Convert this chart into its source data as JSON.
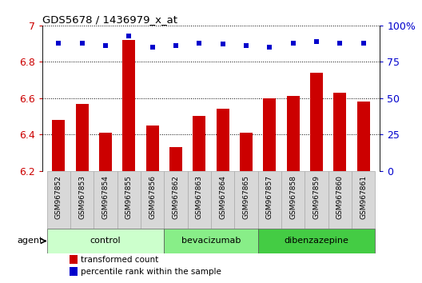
{
  "title": "GDS5678 / 1436979_x_at",
  "samples": [
    "GSM967852",
    "GSM967853",
    "GSM967854",
    "GSM967855",
    "GSM967856",
    "GSM967862",
    "GSM967863",
    "GSM967864",
    "GSM967865",
    "GSM967857",
    "GSM967858",
    "GSM967859",
    "GSM967860",
    "GSM967861"
  ],
  "bar_values": [
    6.48,
    6.57,
    6.41,
    6.92,
    6.45,
    6.33,
    6.5,
    6.54,
    6.41,
    6.6,
    6.61,
    6.74,
    6.63,
    6.58
  ],
  "percentile_values": [
    88,
    88,
    86,
    93,
    85,
    86,
    88,
    87,
    86,
    85,
    88,
    89,
    88,
    88
  ],
  "bar_color": "#cc0000",
  "dot_color": "#0000cc",
  "ylim_left": [
    6.2,
    7.0
  ],
  "ylim_right": [
    0,
    100
  ],
  "yticks_left": [
    6.2,
    6.4,
    6.6,
    6.8,
    7.0
  ],
  "ytick_labels_left": [
    "6.2",
    "6.4",
    "6.6",
    "6.8",
    "7"
  ],
  "yticks_right": [
    0,
    25,
    50,
    75,
    100
  ],
  "ytick_labels_right": [
    "0",
    "25",
    "50",
    "75",
    "100%"
  ],
  "groups": [
    {
      "label": "control",
      "start": 0,
      "end": 5,
      "color": "#ccffcc"
    },
    {
      "label": "bevacizumab",
      "start": 5,
      "end": 9,
      "color": "#88ee88"
    },
    {
      "label": "dibenzazepine",
      "start": 9,
      "end": 14,
      "color": "#44cc44"
    }
  ],
  "agent_label": "agent",
  "legend_bar_label": "transformed count",
  "legend_dot_label": "percentile rank within the sample",
  "bar_width": 0.55,
  "sample_bg_color": "#d8d8d8",
  "sample_border_color": "#aaaaaa"
}
